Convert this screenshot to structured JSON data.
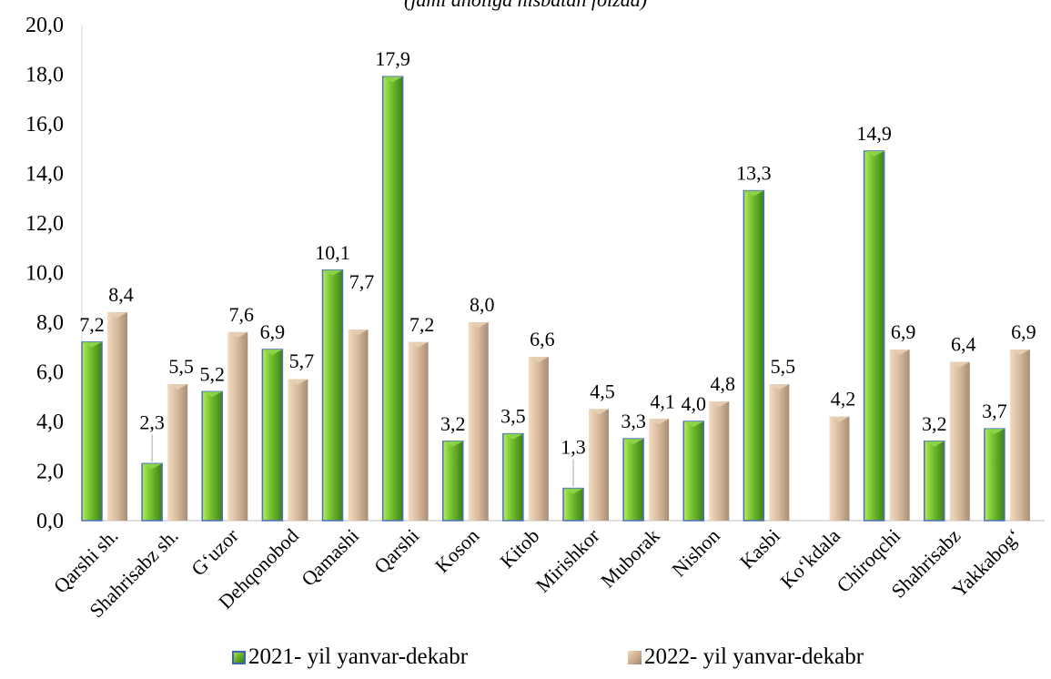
{
  "chart_data": {
    "type": "bar",
    "title": "(jami aholiga nisbatan foizda)",
    "xlabel": "",
    "ylabel": "",
    "ylim": [
      0,
      20
    ],
    "yticks": [
      "0,0",
      "2,0",
      "4,0",
      "6,0",
      "8,0",
      "10,0",
      "12,0",
      "14,0",
      "16,0",
      "18,0",
      "20,0"
    ],
    "ytick_values": [
      0,
      2,
      4,
      6,
      8,
      10,
      12,
      14,
      16,
      18,
      20
    ],
    "grid": false,
    "legend_position": "bottom",
    "categories": [
      "Qarshi sh.",
      "Shahrisabz sh.",
      "G‘uzor",
      "Dehqonobod",
      "Qamashi",
      "Qarshi",
      "Koson",
      "Kitob",
      "Mirishkor",
      "Muborak",
      "Nishon",
      "Kasbi",
      "Ko‘kdala",
      "Chiroqchi",
      "Shahrisabz",
      "Yakkabog‘"
    ],
    "series": [
      {
        "name": "2021- yil yanvar-dekabr",
        "color": "#5aa82a",
        "values": [
          7.2,
          2.3,
          5.2,
          6.9,
          10.1,
          17.9,
          3.2,
          3.5,
          1.3,
          3.3,
          4.0,
          13.3,
          null,
          14.9,
          3.2,
          3.7
        ],
        "labels": [
          "7,2",
          "2,3",
          "5,2",
          "6,9",
          "10,1",
          "17,9",
          "3,2",
          "3,5",
          "1,3",
          "3,3",
          "4,0",
          "13,3",
          "",
          "14,9",
          "3,2",
          "3,7"
        ]
      },
      {
        "name": "2022- yil yanvar-dekabr",
        "color": "#d2b89e",
        "values": [
          8.4,
          5.5,
          7.6,
          5.7,
          7.7,
          7.2,
          8.0,
          6.6,
          4.5,
          4.1,
          4.8,
          5.5,
          4.2,
          6.9,
          6.4,
          6.9
        ],
        "labels": [
          "8,4",
          "5,5",
          "7,6",
          "5,7",
          "7,7",
          "7,2",
          "8,0",
          "6,6",
          "4,5",
          "4,1",
          "4,8",
          "5,5",
          "4,2",
          "6,9",
          "6,4",
          "6,9"
        ]
      }
    ]
  }
}
